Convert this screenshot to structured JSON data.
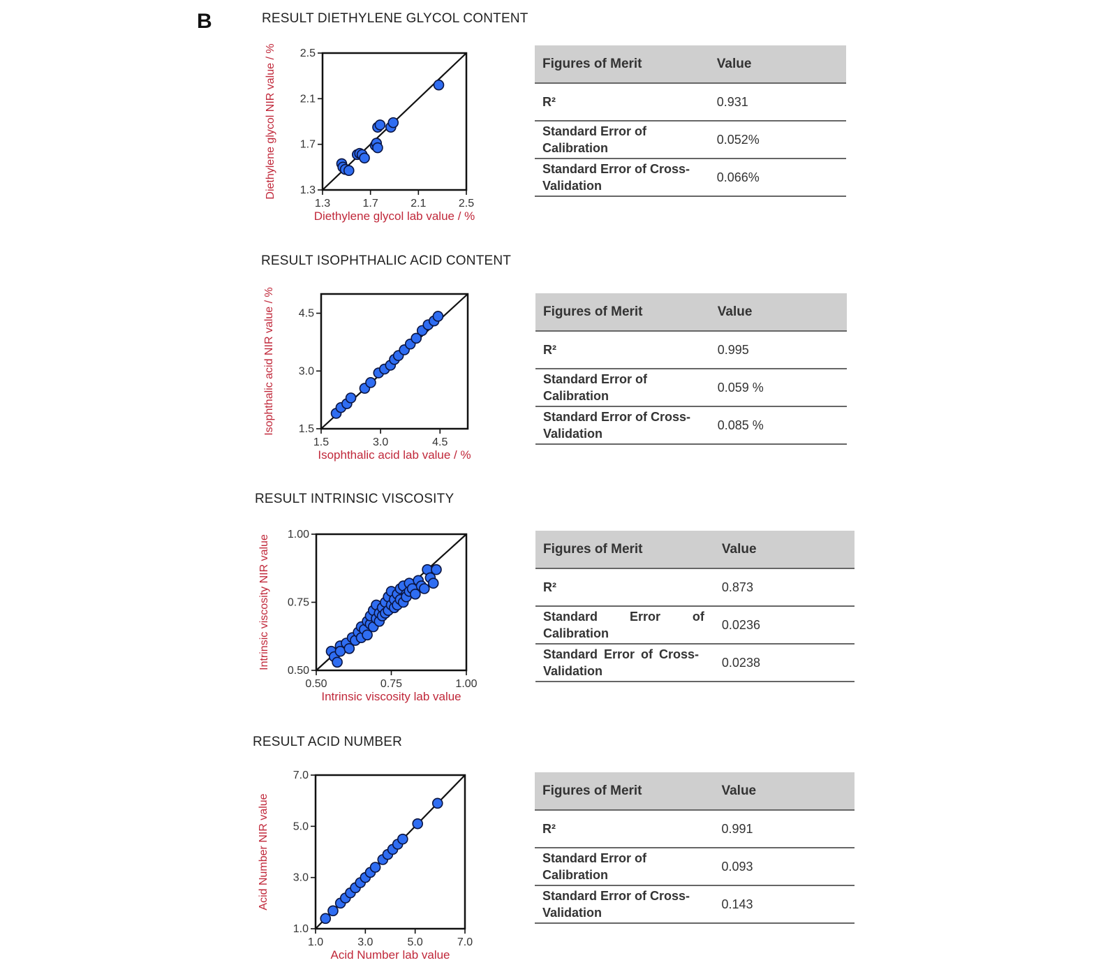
{
  "panel_label": "B",
  "colors": {
    "axis_label": "#c0283a",
    "point_fill": "#2f6df2",
    "point_stroke": "#0a1440",
    "line": "#111111"
  },
  "sections": [
    {
      "title": "RESULT DIETHYLENE GLYCOL CONTENT",
      "table": {
        "headers": [
          "Figures of Merit",
          "Value"
        ],
        "rows": [
          [
            "R²",
            "0.931"
          ],
          [
            "Standard Error of Calibration",
            "0.052%"
          ],
          [
            "Standard Error of Cross-Validation",
            "0.066%"
          ]
        ]
      }
    },
    {
      "title": "RESULT ISOPHTHALIC ACID CONTENT",
      "table": {
        "headers": [
          "Figures of Merit",
          "Value"
        ],
        "rows": [
          [
            "R²",
            "0.995"
          ],
          [
            "Standard Error of Calibration",
            "0.059 %"
          ],
          [
            "Standard Error of Cross-Validation",
            "0.085 %"
          ]
        ]
      }
    },
    {
      "title": "RESULT INTRINSIC VISCOSITY",
      "table": {
        "headers": [
          "Figures of Merit",
          "Value"
        ],
        "rows": [
          [
            "R²",
            "0.873"
          ],
          [
            "Standard Error of Calibration",
            "0.0236"
          ],
          [
            "Standard Error of Cross-Validation",
            "0.0238"
          ]
        ]
      }
    },
    {
      "title": "RESULT ACID NUMBER",
      "table": {
        "headers": [
          "Figures of Merit",
          "Value"
        ],
        "rows": [
          [
            "R²",
            "0.991"
          ],
          [
            "Standard Error of Calibration",
            "0.093"
          ],
          [
            "Standard Error of Cross-Validation",
            "0.143"
          ]
        ]
      }
    }
  ],
  "chart_data": [
    {
      "type": "scatter",
      "xlabel": "Diethylene glycol lab value / %",
      "ylabel": "Diethylene glycol NIR value / %",
      "xlim": [
        1.3,
        2.5
      ],
      "ylim": [
        1.3,
        2.5
      ],
      "xticks": [
        "1.3",
        "1.7",
        "2.1",
        "2.5"
      ],
      "yticks": [
        "1.3",
        "1.7",
        "2.1",
        "2.5"
      ],
      "reference_line": [
        [
          1.3,
          1.3
        ],
        [
          2.5,
          2.5
        ]
      ],
      "x": [
        1.46,
        1.47,
        1.49,
        1.52,
        1.59,
        1.61,
        1.63,
        1.65,
        1.74,
        1.75,
        1.76,
        1.76,
        1.78,
        1.87,
        1.89,
        2.27
      ],
      "y": [
        1.53,
        1.5,
        1.48,
        1.47,
        1.61,
        1.62,
        1.61,
        1.58,
        1.69,
        1.71,
        1.85,
        1.67,
        1.87,
        1.85,
        1.89,
        2.22
      ]
    },
    {
      "type": "scatter",
      "xlabel": "Isophthalic acid lab value / %",
      "ylabel": "Isophthalic acid NIR value / %",
      "xlim": [
        1.5,
        5.2
      ],
      "ylim": [
        1.5,
        5.0
      ],
      "xticks": [
        "1.5",
        "3.0",
        "4.5"
      ],
      "yticks": [
        "1.5",
        "3.0",
        "4.5"
      ],
      "reference_line": [
        [
          1.5,
          1.5
        ],
        [
          5.2,
          5.0
        ]
      ],
      "x": [
        1.88,
        2.0,
        2.15,
        2.25,
        2.6,
        2.75,
        2.95,
        3.1,
        3.25,
        3.35,
        3.45,
        3.6,
        3.75,
        3.9,
        4.05,
        4.2,
        4.35,
        4.45
      ],
      "y": [
        1.9,
        2.05,
        2.15,
        2.3,
        2.55,
        2.7,
        2.95,
        3.05,
        3.15,
        3.3,
        3.4,
        3.55,
        3.7,
        3.85,
        4.05,
        4.2,
        4.3,
        4.42
      ]
    },
    {
      "type": "scatter",
      "xlabel": "Intrinsic viscosity lab value",
      "ylabel": "Intrinsic viscosity NIR value",
      "xlim": [
        0.5,
        1.0
      ],
      "ylim": [
        0.5,
        1.0
      ],
      "xticks": [
        "0.50",
        "0.75",
        "1.00"
      ],
      "yticks": [
        "0.50",
        "0.75",
        "1.00"
      ],
      "reference_line": [
        [
          0.5,
          0.5
        ],
        [
          1.0,
          1.0
        ]
      ],
      "x": [
        0.55,
        0.56,
        0.57,
        0.58,
        0.58,
        0.6,
        0.61,
        0.62,
        0.63,
        0.64,
        0.65,
        0.65,
        0.66,
        0.67,
        0.67,
        0.68,
        0.68,
        0.69,
        0.69,
        0.7,
        0.7,
        0.71,
        0.71,
        0.72,
        0.72,
        0.73,
        0.73,
        0.74,
        0.74,
        0.75,
        0.75,
        0.76,
        0.76,
        0.77,
        0.77,
        0.78,
        0.78,
        0.79,
        0.79,
        0.8,
        0.8,
        0.81,
        0.81,
        0.82,
        0.83,
        0.84,
        0.85,
        0.86,
        0.87,
        0.88,
        0.89,
        0.9
      ],
      "y": [
        0.57,
        0.55,
        0.53,
        0.59,
        0.57,
        0.6,
        0.58,
        0.62,
        0.61,
        0.64,
        0.62,
        0.66,
        0.65,
        0.68,
        0.63,
        0.67,
        0.7,
        0.66,
        0.72,
        0.69,
        0.74,
        0.71,
        0.68,
        0.73,
        0.7,
        0.75,
        0.71,
        0.72,
        0.77,
        0.74,
        0.79,
        0.73,
        0.76,
        0.78,
        0.74,
        0.8,
        0.76,
        0.75,
        0.81,
        0.78,
        0.77,
        0.79,
        0.82,
        0.8,
        0.78,
        0.83,
        0.81,
        0.8,
        0.87,
        0.84,
        0.82,
        0.87
      ]
    },
    {
      "type": "scatter",
      "xlabel": "Acid Number lab value",
      "ylabel": "Acid Number NIR value",
      "xlim": [
        1.0,
        7.0
      ],
      "ylim": [
        1.0,
        7.0
      ],
      "xticks": [
        "1.0",
        "3.0",
        "5.0",
        "7.0"
      ],
      "yticks": [
        "1.0",
        "3.0",
        "5.0",
        "7.0"
      ],
      "reference_line": [
        [
          1.0,
          1.0
        ],
        [
          7.0,
          7.0
        ]
      ],
      "x": [
        1.4,
        1.7,
        2.0,
        2.2,
        2.4,
        2.6,
        2.8,
        3.0,
        3.2,
        3.4,
        3.7,
        3.9,
        4.1,
        4.3,
        4.5,
        5.1,
        5.9
      ],
      "y": [
        1.4,
        1.7,
        2.0,
        2.2,
        2.4,
        2.6,
        2.8,
        3.0,
        3.2,
        3.4,
        3.7,
        3.9,
        4.1,
        4.3,
        4.5,
        5.1,
        5.9
      ]
    }
  ]
}
